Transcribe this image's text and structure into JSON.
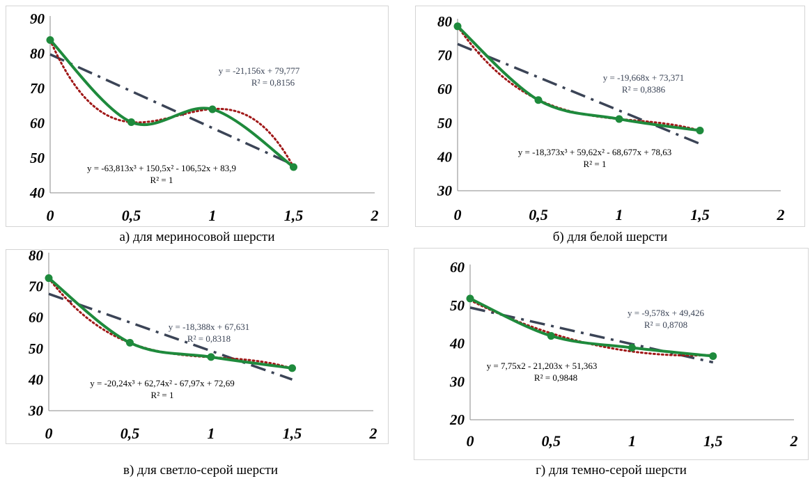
{
  "chart_data": [
    {
      "type": "line",
      "caption": "а) для мериносовой шерсти",
      "x": [
        0,
        0.5,
        1,
        1.5
      ],
      "points": [
        83.9,
        60.3,
        64.0,
        47.4
      ],
      "xlim": [
        0,
        2
      ],
      "ylim": [
        40,
        90
      ],
      "x_ticks": [
        "0",
        "0,5",
        "1",
        "1,5",
        "2"
      ],
      "y_ticks": [
        "40",
        "50",
        "60",
        "70",
        "80",
        "90"
      ],
      "linear": {
        "a": -21.156,
        "b": 79.777,
        "label": "y = -21,156x + 79,777",
        "r2": "R² = 0,8156"
      },
      "poly": {
        "coef": [
          83.9,
          -106.52,
          150.5,
          -63.813
        ],
        "label": "y = -63,813x³ + 150,5x² - 106,52x + 83,9",
        "r2": "R² = 1"
      }
    },
    {
      "type": "line",
      "caption": "б) для белой шерсти",
      "x": [
        0,
        0.5,
        1,
        1.5
      ],
      "points": [
        78.6,
        56.8,
        51.2,
        47.8
      ],
      "xlim": [
        0,
        2
      ],
      "ylim": [
        30,
        80
      ],
      "x_ticks": [
        "0",
        "0,5",
        "1",
        "1,5",
        "2"
      ],
      "y_ticks": [
        "30",
        "40",
        "50",
        "60",
        "70",
        "80"
      ],
      "linear": {
        "a": -19.668,
        "b": 73.371,
        "label": "y = -19,668x + 73,371",
        "r2": "R² = 0,8386"
      },
      "poly": {
        "coef": [
          78.63,
          -68.677,
          59.62,
          -18.373
        ],
        "label": "y = -18,373x³ + 59,62x² - 68,677x + 78,63",
        "r2": "R² = 1"
      }
    },
    {
      "type": "line",
      "caption": "в) для светло-серой шерсти",
      "x": [
        0,
        0.5,
        1,
        1.5
      ],
      "points": [
        72.7,
        51.9,
        47.3,
        43.7
      ],
      "xlim": [
        0,
        2
      ],
      "ylim": [
        30,
        80
      ],
      "x_ticks": [
        "0",
        "0,5",
        "1",
        "1,5",
        "2"
      ],
      "y_ticks": [
        "30",
        "40",
        "50",
        "60",
        "70",
        "80"
      ],
      "linear": {
        "a": -18.388,
        "b": 67.631,
        "label": "y = -18,388x + 67,631",
        "r2": "R² = 0,8318"
      },
      "poly": {
        "coef": [
          72.69,
          -67.97,
          62.74,
          -20.24
        ],
        "label": "y = -20,24x³ + 62,74x² - 67,97x + 72,69",
        "r2": "R² = 1"
      }
    },
    {
      "type": "line",
      "caption": "г) для темно-серой шерсти",
      "x": [
        0,
        0.5,
        1,
        1.5
      ],
      "points": [
        51.8,
        42.0,
        38.9,
        36.7
      ],
      "xlim": [
        0,
        2
      ],
      "ylim": [
        20,
        60
      ],
      "x_ticks": [
        "0",
        "0,5",
        "1",
        "1,5",
        "2"
      ],
      "y_ticks": [
        "20",
        "30",
        "40",
        "50",
        "60"
      ],
      "linear": {
        "a": -9.578,
        "b": 49.426,
        "label": "y = -9,578x + 49,426",
        "r2": "R² = 0,8708"
      },
      "poly": {
        "coef": [
          51.363,
          -21.203,
          7.75,
          0
        ],
        "label": "y = 7,75x2 - 21,203x + 51,363",
        "r2": "R² = 0,9848"
      }
    }
  ],
  "colors": {
    "data_line": "#1e8a3c",
    "linear_trend": "#3b4456",
    "poly_trend": "#a01818",
    "label_text": "#3b4456"
  }
}
